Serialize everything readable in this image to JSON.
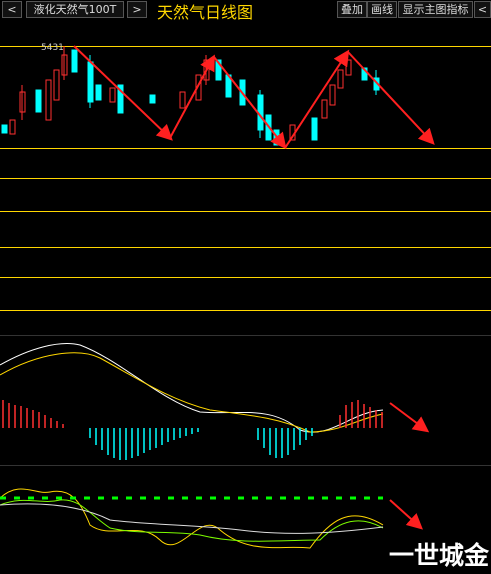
{
  "toolbar": {
    "prev": "<",
    "symbol": "液化天然气100T",
    "next": ">",
    "title": "天然气日线图",
    "buttons": [
      "叠加",
      "画线",
      "显示主图指标"
    ],
    "more": "<"
  },
  "chart": {
    "high_label": "5431"
  },
  "watermark": "一世城金"
}
